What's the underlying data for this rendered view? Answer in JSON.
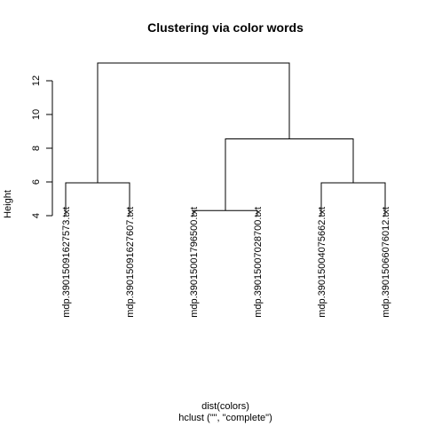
{
  "chart_data": {
    "type": "dendrogram",
    "title": "Clustering via color words",
    "ylabel": "Height",
    "xlabel": "dist(colors)",
    "sub": "hclust (\"\", \"complete\")",
    "ylim": [
      4,
      13.2
    ],
    "yticks": [
      4,
      6,
      8,
      10,
      12
    ],
    "leaves": [
      "mdp.39015091627573.txt",
      "mdp.39015091627607.txt",
      "mdp.39015001796500.txt",
      "mdp.39015007028700.txt",
      "mdp.39015004075662.txt",
      "mdp.39015066076012.txt"
    ],
    "leaf_height": 4,
    "merges": [
      {
        "left": "leaf:2",
        "right": "leaf:3",
        "height": 4.3
      },
      {
        "left": "leaf:0",
        "right": "leaf:1",
        "height": 5.95
      },
      {
        "left": "leaf:4",
        "right": "leaf:5",
        "height": 5.95
      },
      {
        "left": "node:0",
        "right": "node:2",
        "height": 8.55
      },
      {
        "left": "node:1",
        "right": "node:3",
        "height": 13.05
      }
    ]
  }
}
